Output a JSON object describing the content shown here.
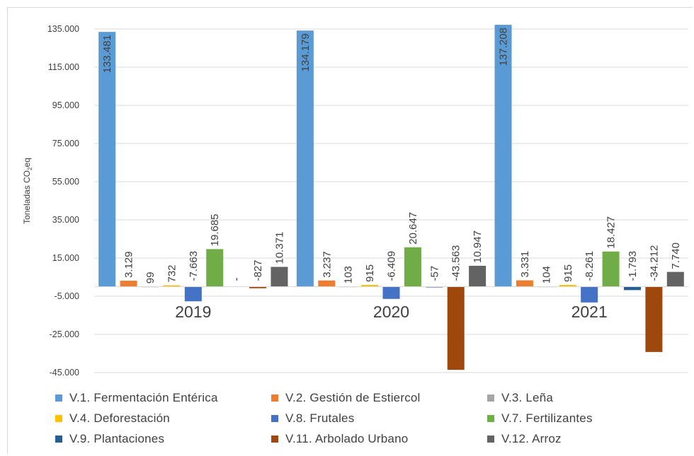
{
  "chart_data": {
    "type": "bar",
    "ylabel": "Toneladas CO",
    "ylabel_sub": "2",
    "ylabel_tail": "eq",
    "ylim": [
      -45000,
      135000
    ],
    "yticks": [
      135000,
      115000,
      95000,
      75000,
      55000,
      35000,
      15000,
      -5000,
      -25000,
      -45000
    ],
    "ytick_labels": [
      "135.000",
      "115.000",
      "95.000",
      "75.000",
      "55.000",
      "35.000",
      "15.000",
      "-5.000",
      "-25.000",
      "-45.000"
    ],
    "grid": true,
    "categories": [
      "2019",
      "2020",
      "2021"
    ],
    "series": [
      {
        "name": "V.1. Fermentación Entérica",
        "color": "#5b9bd5",
        "values": [
          133481,
          134179,
          137208
        ],
        "labels": [
          "133.481",
          "134.179",
          "137.208"
        ]
      },
      {
        "name": "V.2. Gestión de Estiercol",
        "color": "#ed7d31",
        "values": [
          3129,
          3237,
          3331
        ],
        "labels": [
          "3.129",
          "3.237",
          "3.331"
        ]
      },
      {
        "name": "V.3. Leña",
        "color": "#a5a5a5",
        "values": [
          99,
          103,
          104
        ],
        "labels": [
          "99",
          "103",
          "104"
        ]
      },
      {
        "name": "V.4. Deforestación",
        "color": "#ffc000",
        "values": [
          732,
          915,
          915
        ],
        "labels": [
          "732",
          "915",
          "915"
        ]
      },
      {
        "name": "V.8. Frutales",
        "color": "#4472c4",
        "values": [
          -7663,
          -6409,
          -8261
        ],
        "labels": [
          "-7.663",
          "-6.409",
          "-8.261"
        ]
      },
      {
        "name": "V.7. Fertilizantes",
        "color": "#70ad47",
        "values": [
          19685,
          20647,
          18427
        ],
        "labels": [
          "19.685",
          "20.647",
          "18.427"
        ]
      },
      {
        "name": "V.9. Plantaciones",
        "color": "#255e91",
        "values": [
          0,
          -57,
          -1793
        ],
        "labels": [
          "-",
          "-57",
          "-1.793"
        ]
      },
      {
        "name": "V.11. Arbolado Urbano",
        "color": "#9e480e",
        "values": [
          -827,
          -43563,
          -34212
        ],
        "labels": [
          "-827",
          "-43.563",
          "-34.212"
        ]
      },
      {
        "name": "V.12. Arroz",
        "color": "#636363",
        "values": [
          10371,
          10947,
          7740
        ],
        "labels": [
          "10.371",
          "10.947",
          "7.740"
        ]
      }
    ],
    "legend_placement": "bottom"
  }
}
